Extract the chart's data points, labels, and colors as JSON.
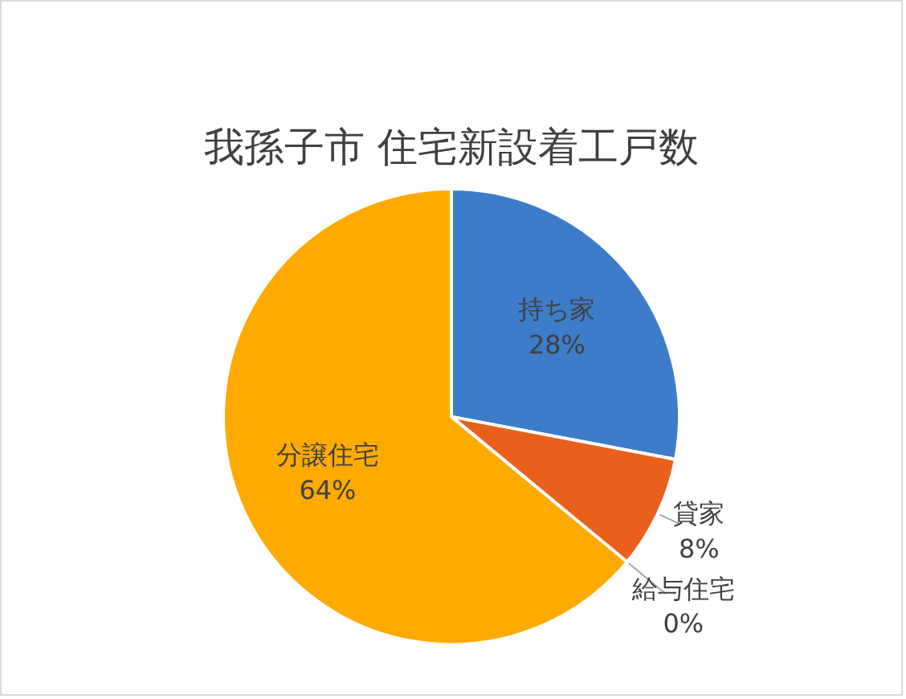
{
  "chart_data": {
    "type": "pie",
    "title": "我孫子市 住宅新設着工戸数",
    "categories": [
      "持ち家",
      "貸家",
      "給与住宅",
      "分譲住宅"
    ],
    "values": [
      28,
      8,
      0,
      64
    ],
    "colors": [
      "#3d7cc9",
      "#e8601c",
      "#a5a5a5",
      "#ffaa00"
    ],
    "value_labels": [
      "28%",
      "8%",
      "0%",
      "64%"
    ]
  }
}
